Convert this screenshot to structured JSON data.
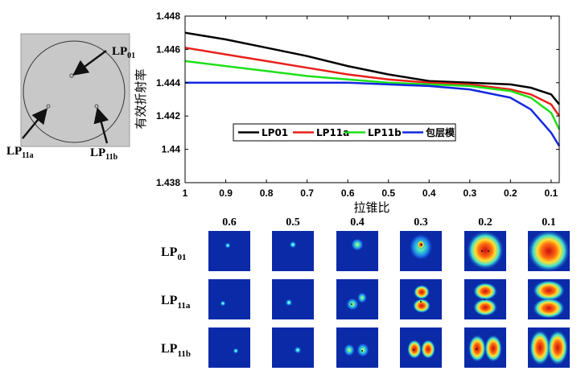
{
  "schematic": {
    "label_lp01_main": "LP",
    "label_lp01_sub": "01",
    "label_lp11a_main": "LP",
    "label_lp11a_sub": "11a",
    "label_lp11b_main": "LP",
    "label_lp11b_sub": "11b"
  },
  "chart_data": {
    "type": "line",
    "title": "",
    "xlabel": "拉锥比",
    "ylabel": "有效折射率",
    "xlim": [
      1.0,
      0.08
    ],
    "ylim": [
      1.438,
      1.448
    ],
    "x_reversed": true,
    "x_ticks": [
      "1",
      "0.9",
      "0.8",
      "0.7",
      "0.6",
      "0.5",
      "0.4",
      "0.3",
      "0.2",
      "0.1"
    ],
    "y_ticks": [
      "1.438",
      "1.44",
      "1.442",
      "1.444",
      "1.446",
      "1.448"
    ],
    "legend_position": "lower-center",
    "series": [
      {
        "name": "LP01",
        "color": "#000000",
        "x": [
          1.0,
          0.9,
          0.8,
          0.7,
          0.6,
          0.5,
          0.4,
          0.3,
          0.2,
          0.15,
          0.1,
          0.08
        ],
        "y": [
          1.447,
          1.4466,
          1.4461,
          1.4456,
          1.445,
          1.4445,
          1.4441,
          1.444,
          1.4439,
          1.4437,
          1.4433,
          1.4427
        ]
      },
      {
        "name": "LP11a",
        "color": "#e8201a",
        "x": [
          1.0,
          0.9,
          0.8,
          0.7,
          0.6,
          0.5,
          0.4,
          0.3,
          0.2,
          0.15,
          0.1,
          0.08
        ],
        "y": [
          1.4461,
          1.4457,
          1.4453,
          1.4449,
          1.4445,
          1.4442,
          1.444,
          1.4439,
          1.4436,
          1.4433,
          1.4427,
          1.442
        ]
      },
      {
        "name": "LP11b",
        "color": "#1ee01a",
        "x": [
          1.0,
          0.9,
          0.8,
          0.7,
          0.6,
          0.5,
          0.4,
          0.3,
          0.2,
          0.15,
          0.1,
          0.08
        ],
        "y": [
          1.4453,
          1.445,
          1.4447,
          1.4444,
          1.4442,
          1.444,
          1.4439,
          1.4438,
          1.4435,
          1.4431,
          1.4422,
          1.4412
        ]
      },
      {
        "name": "包层模",
        "color": "#1428e0",
        "x": [
          1.0,
          0.9,
          0.8,
          0.7,
          0.6,
          0.5,
          0.4,
          0.3,
          0.2,
          0.15,
          0.1,
          0.08
        ],
        "y": [
          1.444,
          1.444,
          1.444,
          1.444,
          1.444,
          1.4439,
          1.4438,
          1.4436,
          1.4431,
          1.4424,
          1.441,
          1.4402
        ]
      }
    ]
  },
  "mode_grid": {
    "columns": [
      "0.6",
      "0.5",
      "0.4",
      "0.3",
      "0.2",
      "0.1"
    ],
    "rows": [
      {
        "label_main": "LP",
        "label_sub": "01"
      },
      {
        "label_main": "LP",
        "label_sub": "11a"
      },
      {
        "label_main": "LP",
        "label_sub": "11b"
      }
    ]
  }
}
